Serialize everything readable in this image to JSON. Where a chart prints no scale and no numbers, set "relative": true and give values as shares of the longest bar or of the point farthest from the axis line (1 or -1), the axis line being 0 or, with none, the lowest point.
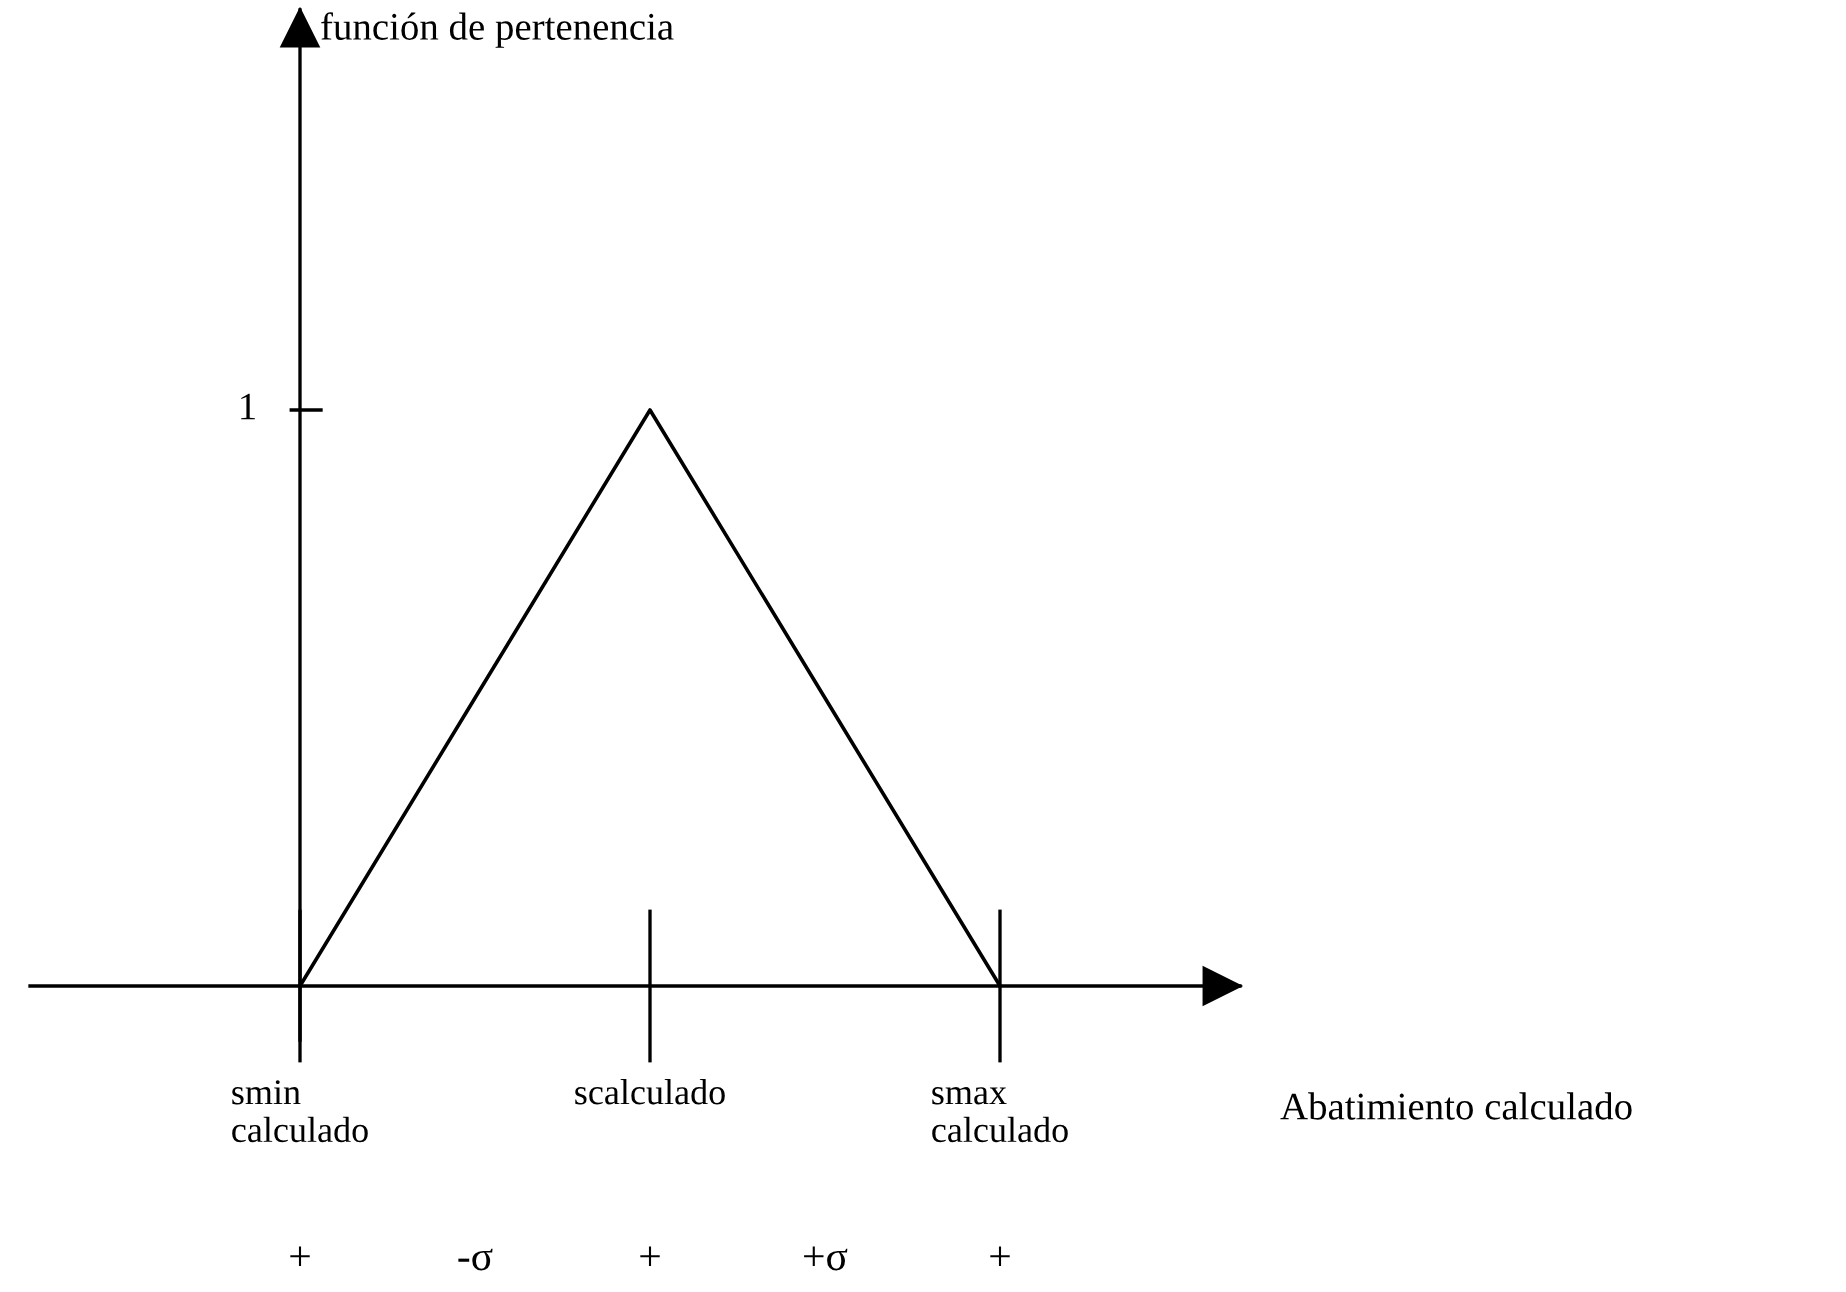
{
  "chart_data": {
    "type": "line",
    "relative": true,
    "categories": [
      "smin\ncalculado",
      null,
      "scalculado",
      null,
      "smax\ncalculado"
    ],
    "values": [
      0,
      0.5,
      1,
      0.5,
      0
    ],
    "color": "#000000",
    "xlabel": "Abatimiento calculado",
    "annotations": [
      "1",
      "función de pertenencia",
      "+",
      "-σ",
      "+",
      "+σ",
      "+"
    ],
    "marker": "none",
    "line_style": "solid",
    "legend": false
  }
}
